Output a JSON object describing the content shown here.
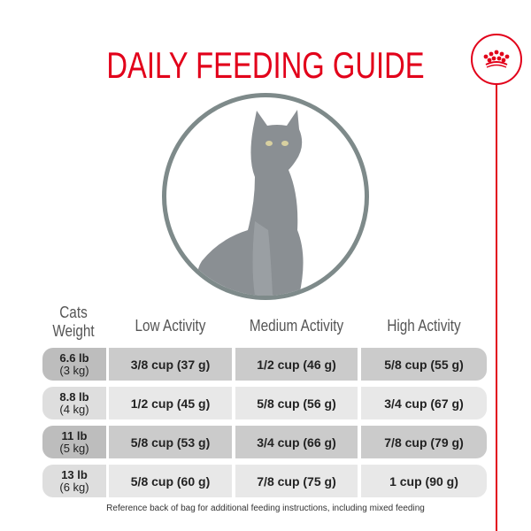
{
  "title": "DAILY FEEDING GUIDE",
  "brand": {
    "logo": "Royal Canin crown",
    "color": "#e2001a"
  },
  "table": {
    "headers": [
      "Cats Weight",
      "Low Activity",
      "Medium Activity",
      "High Activity"
    ],
    "rows": [
      {
        "weight_lb": "6.6 lb",
        "weight_kg": "(3 kg)",
        "low": "3/8 cup (37 g)",
        "medium": "1/2 cup (46 g)",
        "high": "5/8 cup (55 g)"
      },
      {
        "weight_lb": "8.8 lb",
        "weight_kg": "(4 kg)",
        "low": "1/2 cup (45 g)",
        "medium": "5/8 cup (56 g)",
        "high": "3/4 cup (67 g)"
      },
      {
        "weight_lb": "11 lb",
        "weight_kg": "(5 kg)",
        "low": "5/8 cup (53 g)",
        "medium": "3/4 cup (66 g)",
        "high": "7/8 cup (79 g)"
      },
      {
        "weight_lb": "13 lb",
        "weight_kg": "(6 kg)",
        "low": "5/8 cup (60 g)",
        "medium": "7/8 cup (75 g)",
        "high": "1 cup (90 g)"
      }
    ]
  },
  "footnote": "Reference back of bag for additional feeding instructions, including mixed feeding"
}
